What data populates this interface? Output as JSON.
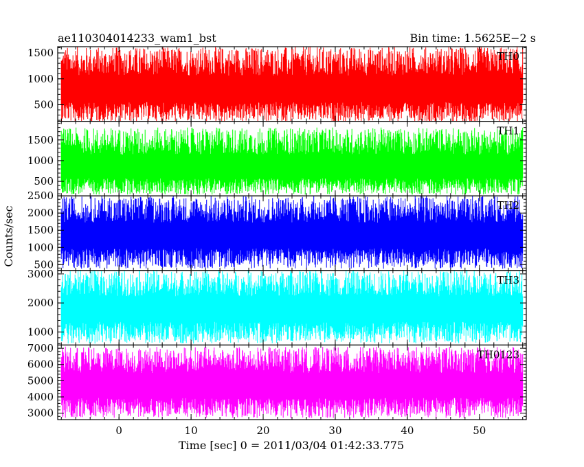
{
  "header": {
    "left": "ae110304014233_wam1_bst",
    "right": "Bin time: 1.5625E−2 s"
  },
  "chart_data": {
    "type": "line",
    "xlabel": "Time [sec] 0 = 2011/03/04 01:42:33.775",
    "ylabel": "Counts/sec",
    "xlim": [
      -8.5,
      56.5
    ],
    "data_x_range": [
      -8.0,
      56.0
    ],
    "x_ticks": [
      0,
      10,
      20,
      30,
      40,
      50
    ],
    "x_tick_labels": [
      "0",
      "10",
      "20",
      "30",
      "40",
      "50"
    ],
    "bin_time_s": 0.015625,
    "panels": [
      {
        "name": "TH0",
        "color": "#ff0000",
        "ylim": [
          180,
          1620
        ],
        "y_ticks": [
          500,
          1000,
          1500
        ],
        "y_tick_labels": [
          "500",
          "1000",
          "1500"
        ],
        "mean": 760,
        "envelope": [
          160,
          1620
        ]
      },
      {
        "name": "TH1",
        "color": "#00ff00",
        "ylim": [
          150,
          1950
        ],
        "y_ticks": [
          500,
          1000,
          1500
        ],
        "y_tick_labels": [
          "500",
          "1000",
          "1500"
        ],
        "mean": 790,
        "envelope": [
          180,
          1800
        ]
      },
      {
        "name": "TH2",
        "color": "#0000ff",
        "ylim": [
          330,
          2500
        ],
        "y_ticks": [
          500,
          1000,
          1500,
          2000,
          2500
        ],
        "y_tick_labels": [
          "500",
          "1000",
          "1500",
          "2000",
          "2500"
        ],
        "mean": 1300,
        "envelope": [
          380,
          2500
        ]
      },
      {
        "name": "TH3",
        "color": "#00ffff",
        "ylim": [
          550,
          3120
        ],
        "y_ticks": [
          1000,
          2000,
          3000
        ],
        "y_tick_labels": [
          "1000",
          "2000",
          "3000"
        ],
        "mean": 1750,
        "envelope": [
          600,
          3120
        ]
      },
      {
        "name": "TH0123",
        "color": "#ff00ff",
        "ylim": [
          2600,
          7200
        ],
        "y_ticks": [
          3000,
          4000,
          5000,
          6000,
          7000
        ],
        "y_tick_labels": [
          "3000",
          "4000",
          "5000",
          "6000",
          "7000"
        ],
        "mean": 4600,
        "envelope": [
          2700,
          7100
        ]
      }
    ]
  }
}
